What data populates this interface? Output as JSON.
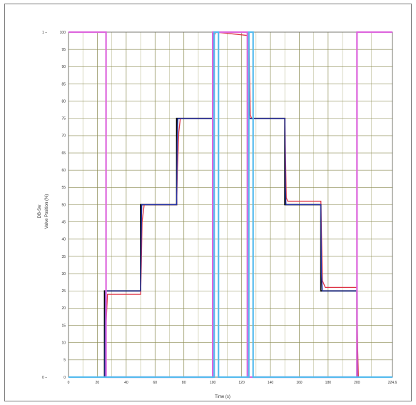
{
  "chart_data": {
    "type": "line",
    "xlabel": "Time (s)",
    "ylabel": "Valve Position (%)",
    "ylabel_secondary": "DB-Sw",
    "xlim": [
      0,
      224.6
    ],
    "ylim": [
      0,
      100
    ],
    "x_ticks": [
      0,
      20,
      40,
      60,
      80,
      100,
      120,
      140,
      160,
      180,
      200
    ],
    "x_tick_labels": [
      "0",
      "20",
      "40",
      "60",
      "80",
      "100",
      "120",
      "140",
      "160",
      "180",
      "200",
      "224.6"
    ],
    "x_end_label": "224.6",
    "y_ticks": [
      0,
      5,
      10,
      15,
      20,
      25,
      30,
      35,
      40,
      45,
      50,
      55,
      60,
      65,
      70,
      75,
      80,
      85,
      90,
      95,
      100
    ],
    "y_tick_labels": [
      "0",
      "5",
      "10",
      "15",
      "20",
      "25",
      "30",
      "35",
      "40",
      "45",
      "50",
      "55",
      "60",
      "65",
      "70",
      "75",
      "80",
      "85",
      "90",
      "95",
      "100"
    ],
    "secondary_y_labels": [
      "0",
      "1"
    ],
    "grid": true,
    "colors": {
      "grid_major": "#8a8a50",
      "grid_minor": "#c8c8a8",
      "pink": "#dd66dd",
      "cyan": "#55bbee",
      "black": "#000000",
      "red": "#dd3344",
      "blue": "#2233aa"
    },
    "series": [
      {
        "color": "#000000",
        "x": [
          0,
          25,
          25,
          50,
          50,
          75,
          75,
          100,
          100,
          125,
          125,
          150,
          150,
          175,
          175,
          200,
          200,
          224.6
        ],
        "y": [
          0,
          0,
          25,
          25,
          50,
          50,
          75,
          75,
          100,
          100,
          75,
          75,
          50,
          50,
          25,
          25,
          0,
          0
        ]
      },
      {
        "color": "#dd3344",
        "x": [
          0,
          25.5,
          26,
          27,
          50,
          50.5,
          51,
          52.5,
          75,
          75.5,
          76.5,
          77.5,
          100,
          101,
          102,
          125,
          126,
          127,
          150,
          151,
          152,
          175,
          176,
          178,
          200,
          200.5,
          201,
          224.6
        ],
        "y": [
          0,
          0,
          15,
          24,
          24,
          33,
          45,
          50,
          50,
          60,
          71,
          75,
          75,
          99,
          100,
          99,
          76,
          75,
          75,
          52,
          51,
          51,
          28,
          26,
          26,
          8,
          0,
          0
        ]
      },
      {
        "color": "#2233aa",
        "x": [
          0,
          25.2,
          25.6,
          50,
          50.4,
          50.8,
          75,
          75.4,
          75.8,
          100,
          100.4,
          125,
          125.4,
          150,
          150.4,
          150.8,
          175,
          175.4,
          176,
          200,
          200.4,
          224.6
        ],
        "y": [
          0,
          0,
          25,
          25,
          40,
          50,
          50,
          68,
          75,
          75,
          100,
          100,
          75,
          75,
          55,
          50,
          50,
          30,
          25,
          25,
          0,
          0
        ]
      },
      {
        "color": "#dd66dd",
        "x": [
          0,
          26,
          26,
          100,
          100,
          124,
          124,
          200,
          200,
          224.6
        ],
        "y": [
          1,
          1,
          0,
          0,
          1,
          1,
          0,
          0,
          1,
          1
        ],
        "axis": "secondary"
      },
      {
        "color": "#55bbee",
        "x": [
          0,
          101,
          101,
          104,
          104,
          125,
          125,
          128,
          128,
          224.6
        ],
        "y": [
          0,
          0,
          1,
          1,
          0,
          0,
          1,
          1,
          0,
          0
        ],
        "axis": "secondary"
      }
    ]
  }
}
